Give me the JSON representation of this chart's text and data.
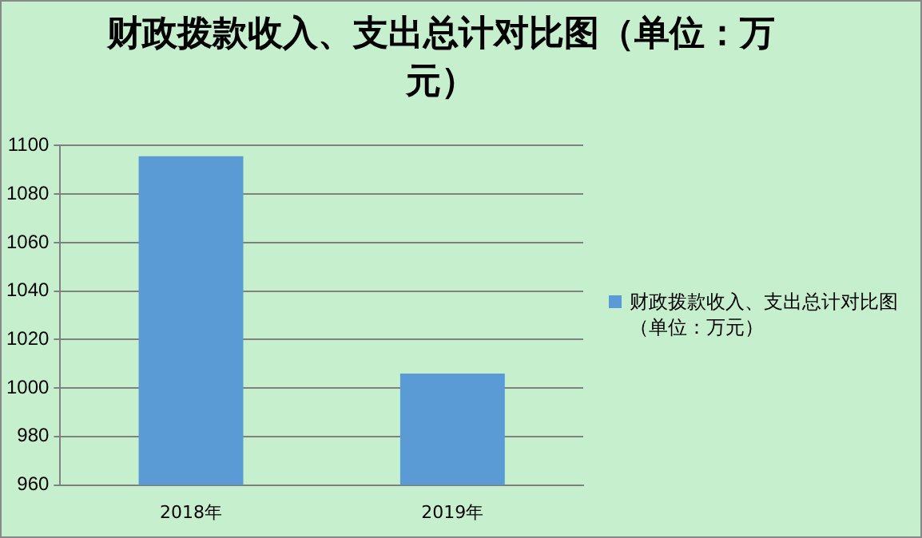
{
  "chart_data": {
    "type": "bar",
    "title": "财政拨款收入、支出总计对比图（单位：万元）",
    "categories": [
      "2018年",
      "2019年"
    ],
    "series": [
      {
        "name": "财政拨款收入、支出总计对比图（单位：万元）",
        "color": "#5b9bd5",
        "values": [
          1095.6,
          1006
        ]
      }
    ],
    "ylim": [
      960,
      1100
    ],
    "yticks": [
      960,
      980,
      1000,
      1020,
      1040,
      1060,
      1080,
      1100
    ],
    "grid": "y",
    "legend": "right"
  }
}
